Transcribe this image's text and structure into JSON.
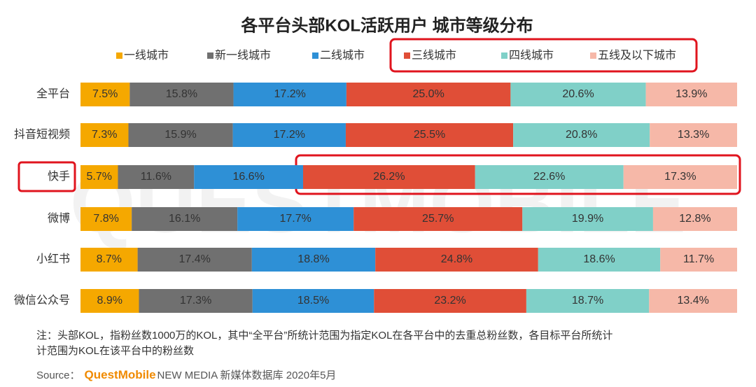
{
  "chart_data": {
    "type": "stacked_barh",
    "title": "各平台头部KOL活跃用户 城市等级分布",
    "watermark": "QUESTMOBILE",
    "categories": [
      "全平台",
      "抖音短视频",
      "快手",
      "微博",
      "小红书",
      "微信公众号"
    ],
    "xlim": [
      0,
      100
    ],
    "legend": "top",
    "series": [
      {
        "name": "一线城市",
        "color": "#f5a800",
        "values": [
          7.5,
          7.3,
          5.7,
          7.8,
          8.7,
          8.9
        ],
        "value_labels": [
          "7.5%",
          "7.3%",
          "5.7%",
          "7.8%",
          "8.7%",
          "8.9%"
        ]
      },
      {
        "name": "新一线城市",
        "color": "#707070",
        "values": [
          15.8,
          15.9,
          11.6,
          16.1,
          17.4,
          17.3
        ],
        "value_labels": [
          "15.8%",
          "15.9%",
          "11.6%",
          "16.1%",
          "17.4%",
          "17.3%"
        ]
      },
      {
        "name": "二线城市",
        "color": "#2e90d6",
        "values": [
          17.2,
          17.2,
          16.6,
          17.7,
          18.8,
          18.5
        ],
        "value_labels": [
          "17.2%",
          "17.2%",
          "16.6%",
          "17.7%",
          "18.8%",
          "18.5%"
        ]
      },
      {
        "name": "三线城市",
        "color": "#e04e37",
        "values": [
          25.0,
          25.5,
          26.2,
          25.7,
          24.8,
          23.2
        ],
        "value_labels": [
          "25.0%",
          "25.5%",
          "26.2%",
          "25.7%",
          "24.8%",
          "23.2%"
        ]
      },
      {
        "name": "四线城市",
        "color": "#80d0c8",
        "values": [
          20.6,
          20.8,
          22.6,
          19.9,
          18.6,
          18.7
        ],
        "value_labels": [
          "20.6%",
          "20.8%",
          "22.6%",
          "19.9%",
          "18.6%",
          "18.7%"
        ]
      },
      {
        "name": "五线及以下城市",
        "color": "#f6b8a8",
        "values": [
          13.9,
          13.3,
          17.3,
          12.8,
          11.7,
          13.4
        ],
        "value_labels": [
          "13.9%",
          "13.3%",
          "17.3%",
          "12.8%",
          "11.7%",
          "13.4%"
        ]
      }
    ],
    "note": [
      "注：头部KOL，指粉丝数1000万的KOL，其中“全平台”所统计范围为指定KOL在各平台中的去重总粉丝数，各目标平台所统计",
      "计范围为KOL在该平台中的粉丝数"
    ],
    "source": [
      "Source：",
      "QuestMobile",
      "NEW MEDIA 新媒体数据库 2020年5月"
    ]
  }
}
